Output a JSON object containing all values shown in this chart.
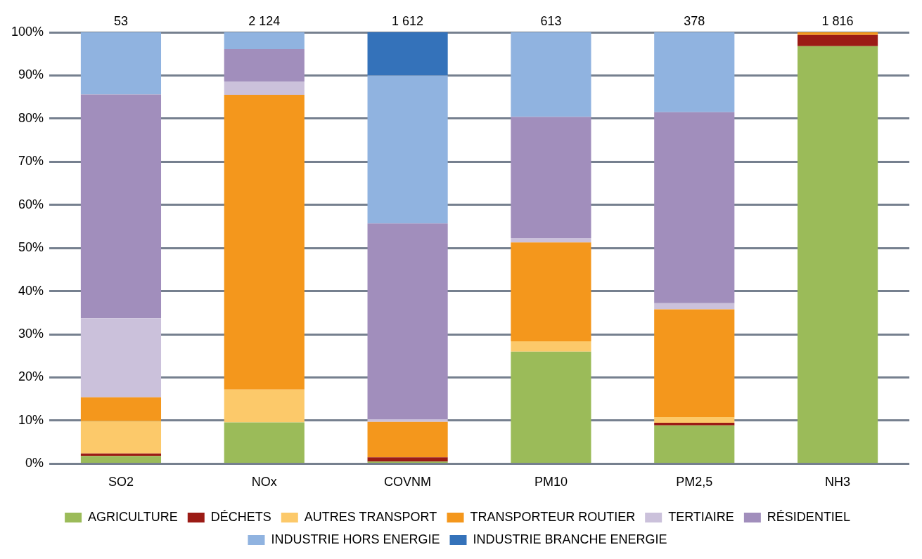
{
  "chart_data": {
    "type": "bar",
    "stacked": true,
    "categories": [
      "SO2",
      "NOx",
      "COVNM",
      "PM10",
      "PM2,5",
      "NH3"
    ],
    "series": [
      {
        "name": "AGRICULTURE",
        "color": "#9bbb59",
        "values": [
          1.8,
          9.6,
          0.5,
          26.0,
          8.9,
          96.8
        ]
      },
      {
        "name": "DÉCHETS",
        "color": "#9b1b15",
        "values": [
          0.6,
          0,
          1.0,
          0,
          0.6,
          2.6
        ]
      },
      {
        "name": "AUTRES TRANSPORT",
        "color": "#fcc96a",
        "values": [
          7.5,
          7.6,
          0,
          2.4,
          1.3,
          0
        ]
      },
      {
        "name": "TRANSPORTEUR ROUTIER",
        "color": "#f4971c",
        "values": [
          5.5,
          68.3,
          8.2,
          22.9,
          25.0,
          0.6
        ]
      },
      {
        "name": "TERTIAIRE",
        "color": "#cbc1db",
        "values": [
          18.3,
          3.1,
          0.6,
          1.0,
          1.4,
          0
        ]
      },
      {
        "name": "RÉSIDENTIEL",
        "color": "#a18ebc",
        "values": [
          51.9,
          7.5,
          45.4,
          28.1,
          44.3,
          0
        ]
      },
      {
        "name": "INDUSTRIE HORS ENERGIE",
        "color": "#90b3e0",
        "values": [
          14.4,
          3.9,
          34.3,
          19.6,
          18.5,
          0
        ]
      },
      {
        "name": "INDUSTRIE BRANCHE ENERGIE",
        "color": "#3472ba",
        "values": [
          0,
          0,
          10.0,
          0,
          0,
          0
        ]
      }
    ],
    "ylim": [
      0,
      100
    ],
    "yticks": [
      {
        "value": 0,
        "label": "0%"
      },
      {
        "value": 10,
        "label": "10%"
      },
      {
        "value": 20,
        "label": "20%"
      },
      {
        "value": 30,
        "label": "30%"
      },
      {
        "value": 40,
        "label": "40%"
      },
      {
        "value": 50,
        "label": "50%"
      },
      {
        "value": 60,
        "label": "60%"
      },
      {
        "value": 70,
        "label": "70%"
      },
      {
        "value": 80,
        "label": "80%"
      },
      {
        "value": 90,
        "label": "90%"
      },
      {
        "value": 100,
        "label": "100%"
      }
    ],
    "annotations": [
      {
        "text": "53",
        "x": "SO2",
        "y": 100
      },
      {
        "text": "2 124",
        "x": "NOx",
        "y": 100
      },
      {
        "text": "1 612",
        "x": "COVNM",
        "y": 100
      },
      {
        "text": "613",
        "x": "PM10",
        "y": 100
      },
      {
        "text": "378",
        "x": "PM2,5",
        "y": 100
      },
      {
        "text": "1 816",
        "x": "NH3",
        "y": 100
      }
    ],
    "grid": "y",
    "legend": "bottom"
  }
}
